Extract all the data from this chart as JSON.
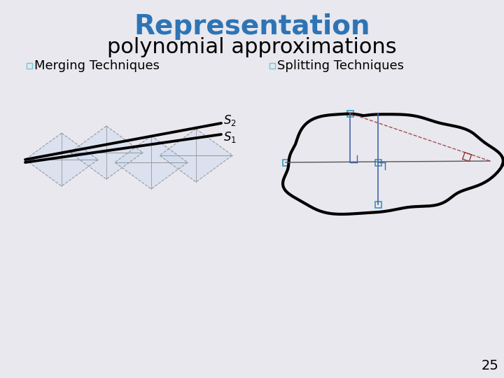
{
  "title_line1": "Representation",
  "title_line2": "polynomial approximations",
  "title_color": "#2E74B5",
  "title2_color": "#000000",
  "bullet_color": "#70C8D0",
  "bullet1": "Merging Techniques",
  "bullet2": "Splitting Techniques",
  "bg_color": "#E8E8EE",
  "page_num": "25",
  "diamond_fill": "#C8D8EE",
  "diamond_edge": "#888888",
  "cyan_color": "#3399BB",
  "blue_color": "#4466AA",
  "red_color": "#993333"
}
